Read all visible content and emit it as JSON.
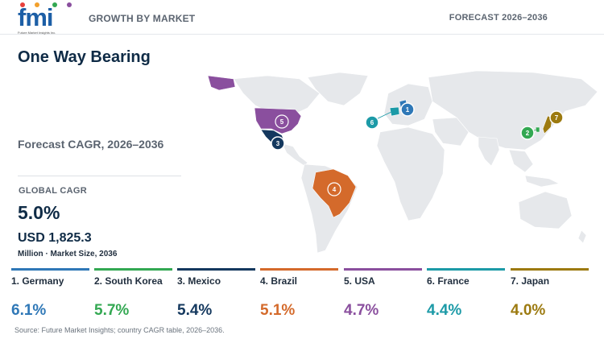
{
  "header": {
    "logo_text": "fmi",
    "logo_tagline": "Future Market Insights Inc.",
    "section_label": "GROWTH BY MARKET",
    "forecast_label": "FORECAST 2026–2036"
  },
  "summary": {
    "title": "One Way Bearing",
    "subtitle": "Forecast CAGR, 2026–2036",
    "global_cagr_label": "GLOBAL CAGR",
    "global_cagr_value": "5.0%",
    "market_size_value": "USD 1,825.3",
    "market_size_note": "Million · Market Size, 2036"
  },
  "colors": {
    "germany": "#2f78b7",
    "south_korea": "#33a852",
    "mexico": "#14385e",
    "brazil": "#d46a2b",
    "usa": "#8a4f9e",
    "france": "#1c9aa7",
    "japan": "#9c7a10",
    "land": "#e6e8eb"
  },
  "countries": [
    {
      "rank": "1",
      "name": "1. Germany",
      "cagr": "6.1%",
      "color": "#2f78b7"
    },
    {
      "rank": "2",
      "name": "2. South Korea",
      "cagr": "5.7%",
      "color": "#33a852"
    },
    {
      "rank": "3",
      "name": "3. Mexico",
      "cagr": "5.4%",
      "color": "#14385e"
    },
    {
      "rank": "4",
      "name": "4. Brazil",
      "cagr": "5.1%",
      "color": "#d46a2b"
    },
    {
      "rank": "5",
      "name": "5. USA",
      "cagr": "4.7%",
      "color": "#8a4f9e"
    },
    {
      "rank": "6",
      "name": "6. France",
      "cagr": "4.4%",
      "color": "#1c9aa7"
    },
    {
      "rank": "7",
      "name": "7. Japan",
      "cagr": "4.0%",
      "color": "#9c7a10"
    }
  ],
  "map_markers": [
    {
      "label": "1"
    },
    {
      "label": "2"
    },
    {
      "label": "3"
    },
    {
      "label": "4"
    },
    {
      "label": "5"
    },
    {
      "label": "6"
    },
    {
      "label": "7"
    }
  ],
  "footer": {
    "source": "Source: Future Market Insights; country CAGR table, 2026–2036."
  }
}
